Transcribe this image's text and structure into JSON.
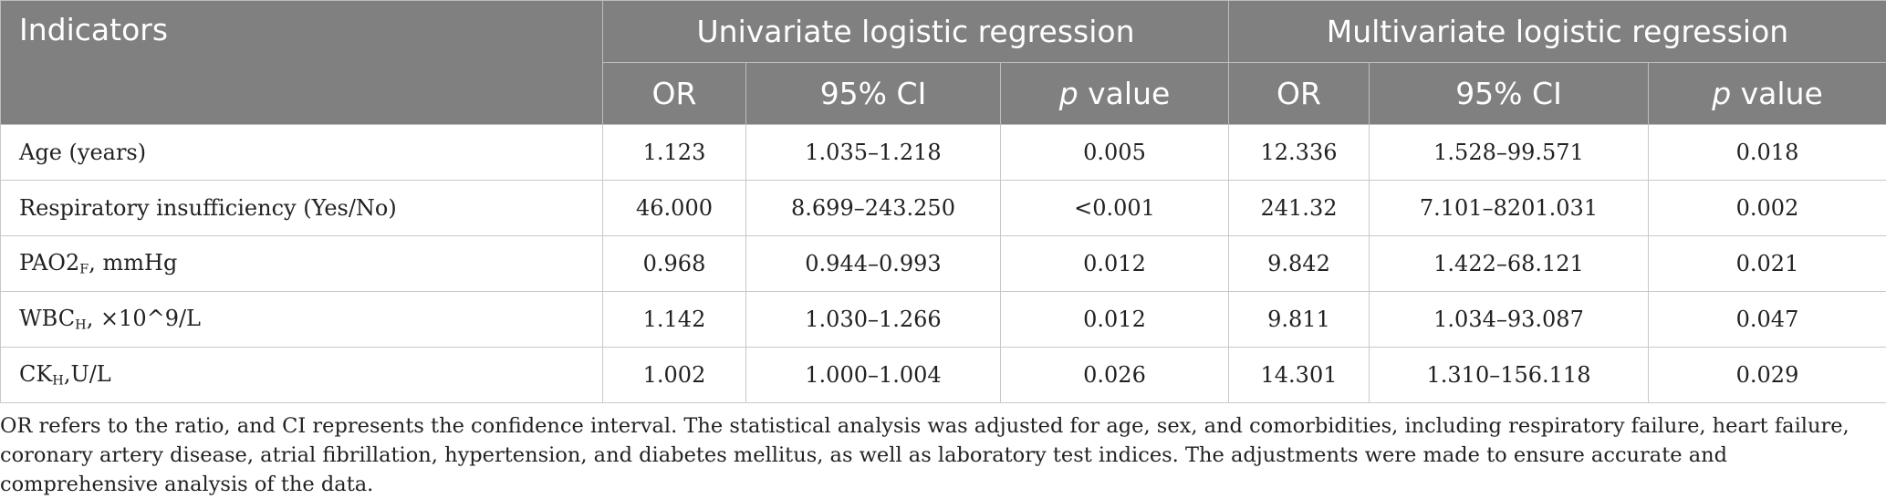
{
  "table": {
    "header": {
      "indicators": "Indicators",
      "univariate": "Univariate logistic regression",
      "multivariate": "Multivariate logistic regression",
      "or": "OR",
      "ci": "95% CI",
      "p_italic": "p",
      "p_rest": " value"
    },
    "rows": [
      {
        "label": "Age (years)",
        "sub": "",
        "suffix": "",
        "u_or": "1.123",
        "u_ci": "1.035–1.218",
        "u_p": "0.005",
        "m_or": "12.336",
        "m_ci": "1.528–99.571",
        "m_p": "0.018"
      },
      {
        "label": "Respiratory insufficiency (Yes/No)",
        "sub": "",
        "suffix": "",
        "u_or": "46.000",
        "u_ci": "8.699–243.250",
        "u_p": "<0.001",
        "m_or": "241.32",
        "m_ci": "7.101–8201.031",
        "m_p": "0.002"
      },
      {
        "label": "PAO2",
        "sub": "F",
        "suffix": ", mmHg",
        "u_or": "0.968",
        "u_ci": "0.944–0.993",
        "u_p": "0.012",
        "m_or": "9.842",
        "m_ci": "1.422–68.121",
        "m_p": "0.021"
      },
      {
        "label": "WBC",
        "sub": "H",
        "suffix": ", ×10^9/L",
        "u_or": "1.142",
        "u_ci": "1.030–1.266",
        "u_p": "0.012",
        "m_or": "9.811",
        "m_ci": "1.034–93.087",
        "m_p": "0.047"
      },
      {
        "label": "CK",
        "sub": "H",
        "suffix": ",U/L",
        "u_or": "1.002",
        "u_ci": "1.000–1.004",
        "u_p": "0.026",
        "m_or": "14.301",
        "m_ci": "1.310–156.118",
        "m_p": "0.029"
      }
    ]
  },
  "footnote": "OR refers to the ratio, and CI represents the confidence interval. The statistical analysis was adjusted for age, sex, and comorbidities, including respiratory failure, heart failure, coronary artery disease, atrial fibrillation, hypertension, and diabetes mellitus, as well as laboratory test indices. The adjustments were made to ensure accurate and comprehensive analysis of the data."
}
